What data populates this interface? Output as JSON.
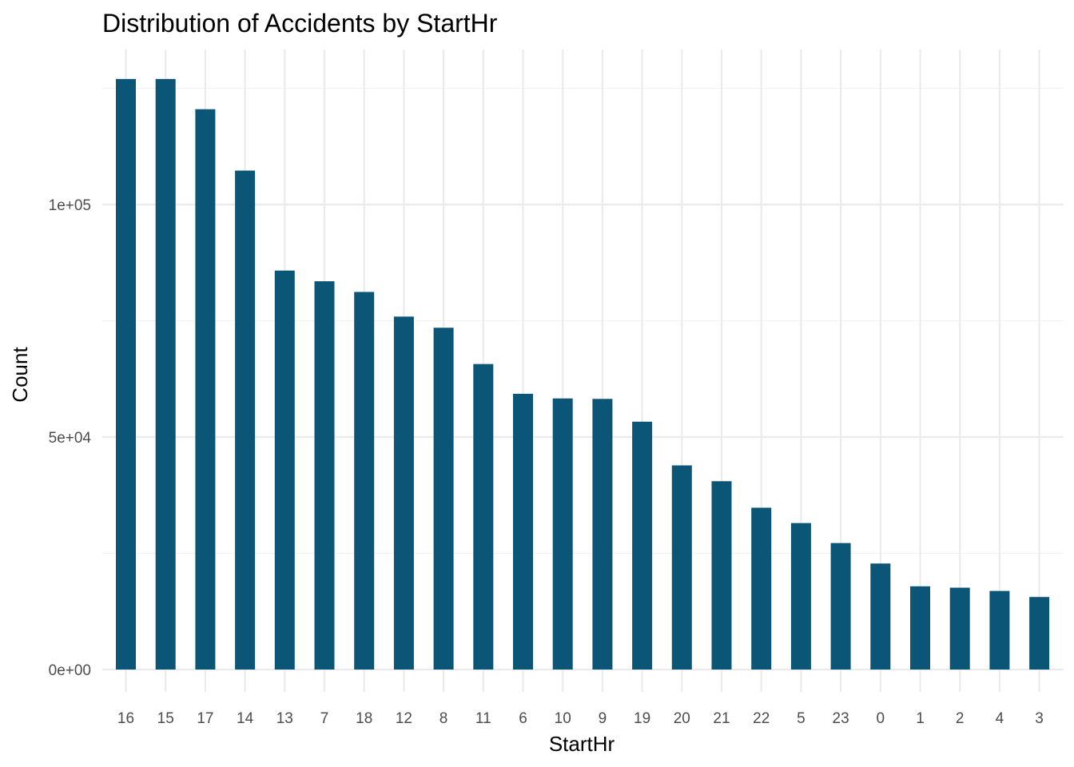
{
  "chart_data": {
    "type": "bar",
    "title": "Distribution of Accidents by StartHr",
    "xlabel": "StartHr",
    "ylabel": "Count",
    "categories": [
      "16",
      "15",
      "17",
      "14",
      "13",
      "7",
      "18",
      "12",
      "8",
      "11",
      "6",
      "10",
      "9",
      "19",
      "20",
      "21",
      "22",
      "5",
      "23",
      "0",
      "1",
      "2",
      "4",
      "3"
    ],
    "values": [
      127000,
      127000,
      120500,
      107300,
      85800,
      83500,
      81200,
      75900,
      73500,
      65700,
      59300,
      58300,
      58200,
      53300,
      43900,
      40500,
      34800,
      31500,
      27200,
      22800,
      17900,
      17600,
      16900,
      15600
    ],
    "ylim": [
      0,
      135000
    ],
    "yticks": [
      {
        "value": 0,
        "label": "0e+00"
      },
      {
        "value": 50000,
        "label": "5e+04"
      },
      {
        "value": 100000,
        "label": "1e+05"
      }
    ],
    "y_minor_ticks": [
      25000,
      75000,
      125000
    ],
    "grid": true,
    "legend": "none",
    "colors": {
      "bar": "#0b5677",
      "grid_major": "#ebebeb",
      "grid_minor": "#f2f2f2",
      "tick_label": "#4d4d4d",
      "text": "#000000"
    }
  }
}
